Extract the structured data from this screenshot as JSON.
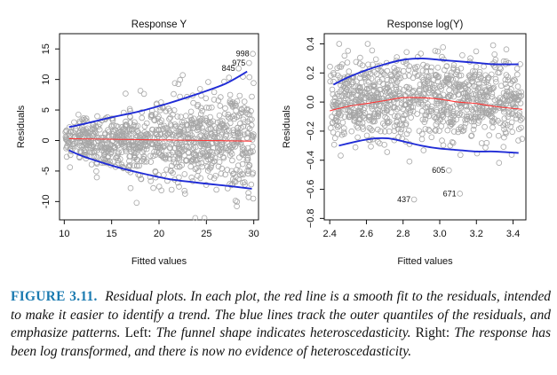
{
  "chart_data": [
    {
      "type": "scatter",
      "title": "Response Y",
      "xlabel": "Fitted values",
      "ylabel": "Residuals",
      "xlim": [
        9.5,
        30.5
      ],
      "ylim": [
        -13,
        17.5
      ],
      "xticks": [
        10,
        15,
        20,
        25,
        30
      ],
      "yticks": [
        -10,
        -5,
        0,
        5,
        10,
        15
      ],
      "point_cloud": {
        "color": "#a6a6a6",
        "n_points": 1000,
        "x_range": [
          10,
          30
        ],
        "residual_spread_at_x_min": 1.5,
        "residual_spread_at_x_max": 4.5
      },
      "labeled_points": [
        {
          "label": "998",
          "x": 29.9,
          "y": 14.2
        },
        {
          "label": "975",
          "x": 29.5,
          "y": 12.7
        },
        {
          "label": "845",
          "x": 28.4,
          "y": 11.8
        }
      ],
      "series": [
        {
          "color": "#ff3333",
          "x": [
            10.5,
            15,
            20,
            25,
            29.8
          ],
          "y": [
            0.3,
            0.2,
            0.1,
            0.0,
            -0.1
          ]
        },
        {
          "color": "#1f2bd6",
          "x": [
            10.5,
            12,
            15,
            18,
            21,
            24,
            27,
            29.3
          ],
          "y": [
            2.2,
            2.7,
            3.8,
            4.8,
            6.1,
            7.6,
            9.3,
            11.3
          ]
        },
        {
          "color": "#1f2bd6",
          "x": [
            10.5,
            12,
            15,
            18,
            21,
            24,
            27,
            29.8
          ],
          "y": [
            -1.6,
            -2.6,
            -4.1,
            -5.3,
            -6.3,
            -6.9,
            -7.4,
            -7.9
          ]
        }
      ]
    },
    {
      "type": "scatter",
      "title": "Response log(Y)",
      "xlabel": "Fitted values",
      "ylabel": "Residuals",
      "xlim": [
        2.37,
        3.47
      ],
      "ylim": [
        -0.81,
        0.47
      ],
      "xticks": [
        2.4,
        2.6,
        2.8,
        3.0,
        3.2,
        3.4
      ],
      "xtick_labels": [
        "2.4",
        "2.6",
        "2.8",
        "3.0",
        "3.2",
        "3.4"
      ],
      "yticks": [
        -0.8,
        -0.6,
        -0.4,
        -0.2,
        0.0,
        0.2,
        0.4
      ],
      "ytick_labels": [
        "−0.8",
        "−0.6",
        "−0.4",
        "−0.2",
        "0.0",
        "0.2",
        "0.4"
      ],
      "point_cloud": {
        "color": "#a6a6a6",
        "n_points": 1000,
        "x_range": [
          2.4,
          3.45
        ],
        "residual_spread": 0.14
      },
      "labeled_points": [
        {
          "label": "605",
          "x": 3.05,
          "y": -0.47
        },
        {
          "label": "671",
          "x": 3.11,
          "y": -0.63
        },
        {
          "label": "437",
          "x": 2.86,
          "y": -0.67
        }
      ],
      "series": [
        {
          "color": "#ff3333",
          "x": [
            2.4,
            2.5,
            2.6,
            2.7,
            2.8,
            2.9,
            3.0,
            3.1,
            3.2,
            3.3,
            3.45
          ],
          "y": [
            -0.06,
            -0.03,
            -0.01,
            0.01,
            0.03,
            0.03,
            0.02,
            0.0,
            -0.01,
            -0.03,
            -0.05
          ]
        },
        {
          "color": "#1f2bd6",
          "x": [
            2.42,
            2.5,
            2.6,
            2.7,
            2.8,
            2.9,
            3.0,
            3.1,
            3.2,
            3.3,
            3.43
          ],
          "y": [
            0.12,
            0.17,
            0.22,
            0.26,
            0.29,
            0.3,
            0.29,
            0.28,
            0.27,
            0.26,
            0.26
          ]
        },
        {
          "color": "#1f2bd6",
          "x": [
            2.45,
            2.55,
            2.65,
            2.72,
            2.8,
            2.9,
            3.0,
            3.1,
            3.2,
            3.3,
            3.43
          ],
          "y": [
            -0.3,
            -0.27,
            -0.25,
            -0.25,
            -0.27,
            -0.3,
            -0.32,
            -0.33,
            -0.34,
            -0.34,
            -0.35
          ]
        }
      ]
    }
  ],
  "caption": {
    "label": "FIGURE 3.11.",
    "text_a": "Residual plots. In each plot, the red line is a smooth fit to the residuals, intended to make it easier to identify a trend. The blue lines track the outer quantiles of the residuals, and emphasize patterns.",
    "left_label": "Left:",
    "text_b": "The funnel shape indicates heteroscedasticity.",
    "right_label": "Right:",
    "text_c": "The response has been log transformed, and there is now no evidence of heteroscedasticity."
  }
}
